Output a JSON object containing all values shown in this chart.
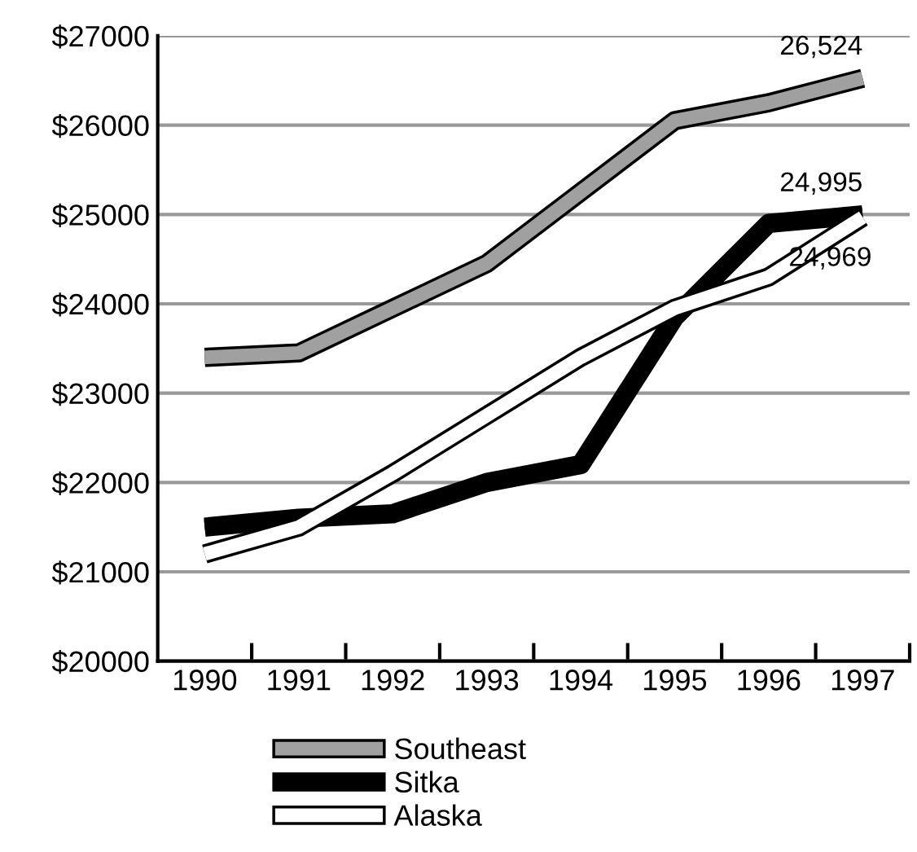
{
  "chart_data": {
    "type": "line",
    "categories": [
      "1990",
      "1991",
      "1992",
      "1993",
      "1994",
      "1995",
      "1996",
      "1997"
    ],
    "series": [
      {
        "name": "Southeast",
        "color": "#a0a0a0",
        "values": [
          23400,
          23450,
          23950,
          24450,
          25250,
          26050,
          26250,
          26524
        ],
        "value_labels": [
          null,
          null,
          null,
          null,
          null,
          null,
          null,
          "26,524"
        ]
      },
      {
        "name": "Sitka",
        "color": "#000000",
        "values": [
          21500,
          21600,
          21650,
          22000,
          22200,
          23850,
          24900,
          24995
        ],
        "value_labels": [
          null,
          null,
          null,
          null,
          null,
          null,
          null,
          "24,995"
        ]
      },
      {
        "name": "Alaska",
        "color": "#ffffff",
        "values": [
          21200,
          21500,
          22100,
          22750,
          23400,
          23950,
          24300,
          24969
        ],
        "value_labels": [
          null,
          null,
          null,
          null,
          null,
          null,
          null,
          "24,969"
        ]
      }
    ],
    "ylim": [
      20000,
      27000
    ],
    "yticks": [
      {
        "value": 20000,
        "label": "$20000"
      },
      {
        "value": 21000,
        "label": "$21000"
      },
      {
        "value": 22000,
        "label": "$22000"
      },
      {
        "value": 23000,
        "label": "$23000"
      },
      {
        "value": 24000,
        "label": "$24000"
      },
      {
        "value": 25000,
        "label": "$25000"
      },
      {
        "value": 26000,
        "label": "$26000"
      },
      {
        "value": 27000,
        "label": "$27000"
      }
    ],
    "grid": "y",
    "legend": "bottom",
    "marker": "none",
    "line_style": "solid"
  }
}
